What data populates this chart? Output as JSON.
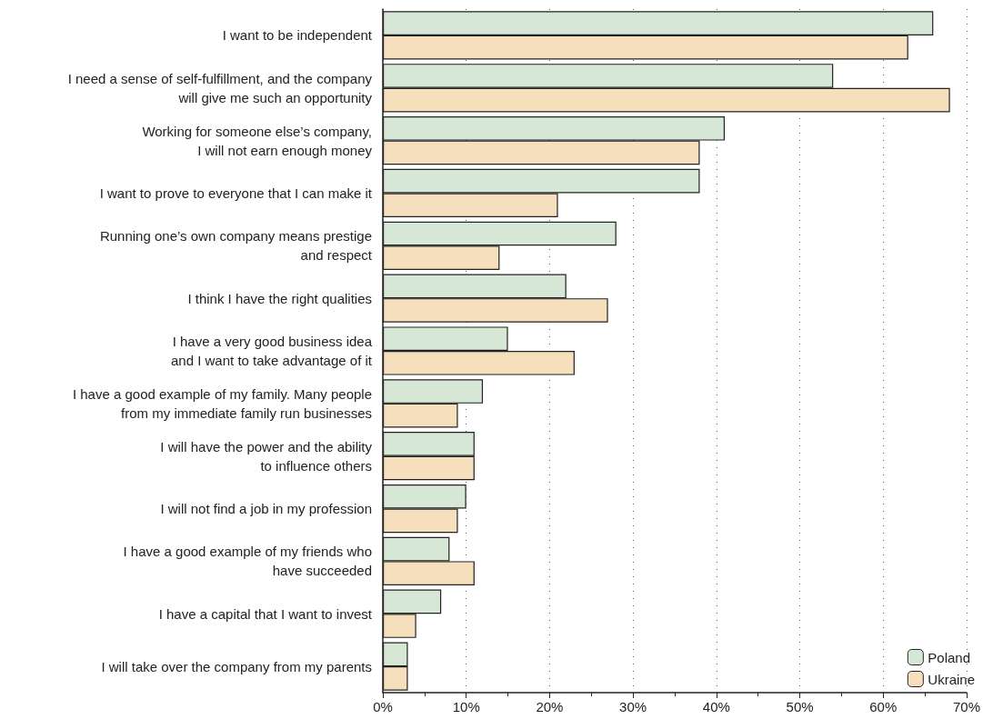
{
  "chart_data": {
    "type": "bar",
    "orientation": "horizontal",
    "categories": [
      "I want to be independent",
      "I need a sense of self-fulfillment, and the company\nwill give me such an opportunity",
      "Working for someone else’s company,\nI will not earn enough money",
      "I want to prove to everyone that I can make it",
      "Running one’s own company means prestige\nand respect",
      "I think I have the right qualities",
      "I have a very good business idea\nand I want to take advantage of it",
      "I have a good example of my family. Many people\nfrom my immediate family run businesses",
      "I will have the power and the ability\nto influence others",
      "I will not find a job in my profession",
      "I have a good example of my friends who\nhave succeeded",
      "I have a capital that I want to invest",
      "I will take over the company from my parents"
    ],
    "series": [
      {
        "name": "Poland",
        "color": "#d6e7d6",
        "values": [
          66,
          54,
          41,
          38,
          28,
          22,
          15,
          12,
          11,
          10,
          8,
          7,
          3
        ]
      },
      {
        "name": "Ukraine",
        "color": "#f6dfbc",
        "values": [
          63,
          68,
          38,
          21,
          14,
          27,
          23,
          9,
          11,
          9,
          11,
          4,
          3
        ]
      }
    ],
    "xlim": [
      0,
      70
    ],
    "xticks": [
      {
        "value": 0,
        "label": "0%"
      },
      {
        "value": 10,
        "label": "10%"
      },
      {
        "value": 20,
        "label": "20%"
      },
      {
        "value": 30,
        "label": "30%"
      },
      {
        "value": 40,
        "label": "40%"
      },
      {
        "value": 50,
        "label": "50%"
      },
      {
        "value": 60,
        "label": "60%"
      },
      {
        "value": 70,
        "label": "70%"
      }
    ],
    "grid": "x",
    "legend": "bottom right"
  }
}
